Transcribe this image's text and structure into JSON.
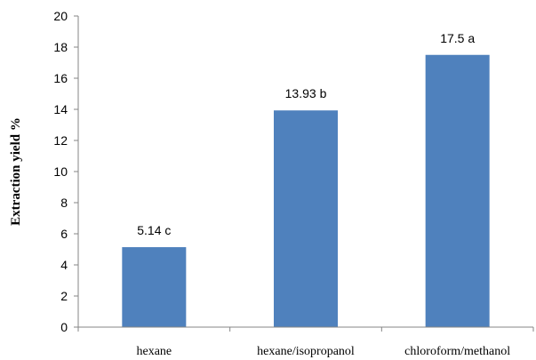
{
  "chart_data": {
    "type": "bar",
    "categories": [
      "hexane",
      "hexane/isopropanol",
      "chloroform/methanol"
    ],
    "values": [
      5.14,
      13.93,
      17.5
    ],
    "data_labels": [
      "5.14 c",
      "13.93 b",
      "17.5 a"
    ],
    "title": "",
    "xlabel": "",
    "ylabel": "Extraction yield %",
    "ylim": [
      0,
      20
    ],
    "yticks": [
      0,
      2,
      4,
      6,
      8,
      10,
      12,
      14,
      16,
      18,
      20
    ],
    "grid": false,
    "legend": "none",
    "bar_color": "#4F81BD",
    "axis_color": "#868686"
  }
}
